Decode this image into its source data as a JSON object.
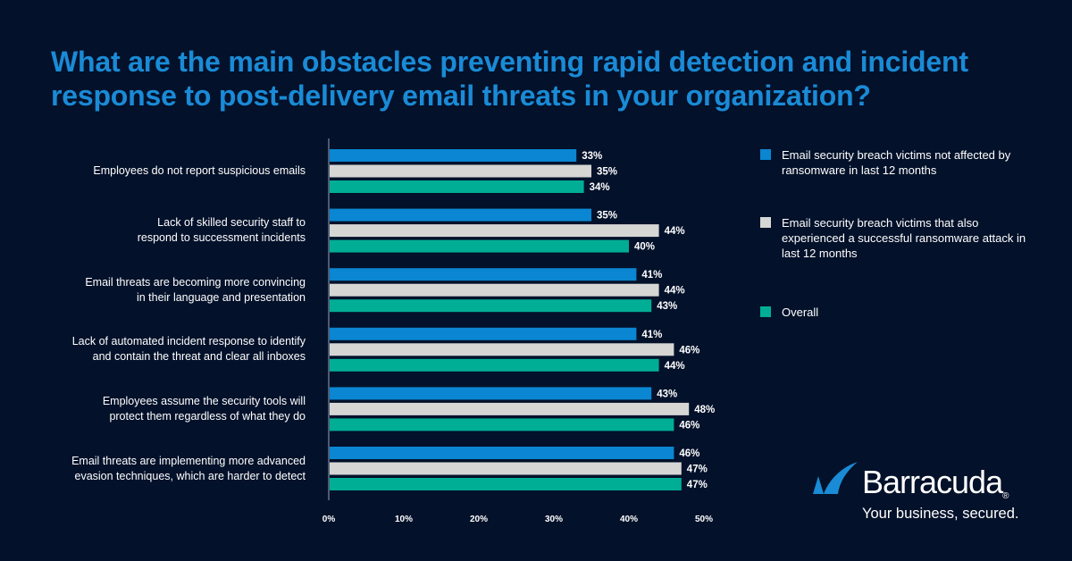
{
  "chart_data": {
    "type": "bar",
    "orientation": "horizontal",
    "title": "What are the main obstacles preventing rapid detection and incident response to post-delivery email threats in your organization?",
    "categories": [
      [
        "Employees do not report suspicious emails"
      ],
      [
        "Lack of skilled security staff to",
        "respond to successment incidents"
      ],
      [
        "Email threats are becoming more convincing",
        "in their language and presentation"
      ],
      [
        "Lack of automated incident response to identify",
        "and contain the threat and clear all inboxes"
      ],
      [
        "Employees assume the security tools will",
        "protect them regardless of what they do"
      ],
      [
        "Email threats are implementing more advanced",
        "evasion techniques, which are harder to detect"
      ]
    ],
    "series": [
      {
        "name": "Email security breach victims not affected by ransomware in last 12 months",
        "color": "#0a86d2",
        "values": [
          33,
          35,
          41,
          41,
          43,
          46
        ]
      },
      {
        "name": "Email security breach victims that also experienced a successful ransomware attack in last 12 months",
        "color": "#d6d6d4",
        "values": [
          35,
          44,
          44,
          46,
          48,
          47
        ]
      },
      {
        "name": "Overall",
        "color": "#00ae96",
        "values": [
          34,
          40,
          43,
          44,
          46,
          47
        ]
      }
    ],
    "xlim": [
      0,
      50
    ],
    "xticks": [
      "0%",
      "10%",
      "20%",
      "30%",
      "40%",
      "50%"
    ],
    "value_suffix": "%",
    "legend_placement": "right",
    "grid": false
  },
  "brand": {
    "name": "Barracuda",
    "tagline": "Your business, secured.",
    "registered": "®"
  }
}
